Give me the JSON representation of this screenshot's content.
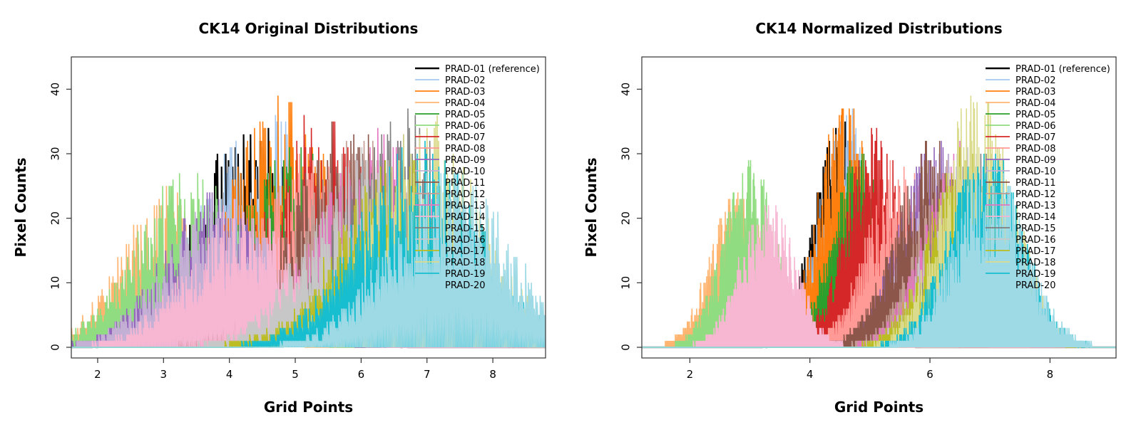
{
  "chart_data": [
    {
      "type": "line",
      "title": "CK14 Original Distributions",
      "xlabel": "Grid Points",
      "ylabel": "Pixel Counts",
      "xlim": [
        1.6,
        8.8
      ],
      "ylim": [
        0,
        45
      ],
      "xticks": [
        2,
        3,
        4,
        5,
        6,
        7,
        8
      ],
      "yticks": [
        0,
        10,
        20,
        30,
        40
      ],
      "legend_position": "top-right",
      "series": [
        {
          "name": "PRAD-01 (reference)",
          "color": "#000000",
          "center": 4.3,
          "sd": 0.85,
          "peak": 35
        },
        {
          "name": "PRAD-02",
          "color": "#A6C8EE",
          "center": 4.5,
          "sd": 0.9,
          "peak": 37
        },
        {
          "name": "PRAD-03",
          "color": "#FF7F0E",
          "center": 4.8,
          "sd": 0.85,
          "peak": 39
        },
        {
          "name": "PRAD-04",
          "color": "#FFB570",
          "center": 3.1,
          "sd": 0.75,
          "peak": 25
        },
        {
          "name": "PRAD-05",
          "color": "#2CA02C",
          "center": 5.0,
          "sd": 0.9,
          "peak": 32
        },
        {
          "name": "PRAD-06",
          "color": "#90DC80",
          "center": 3.4,
          "sd": 0.8,
          "peak": 29
        },
        {
          "name": "PRAD-07",
          "color": "#D62728",
          "center": 5.4,
          "sd": 0.9,
          "peak": 36
        },
        {
          "name": "PRAD-08",
          "color": "#FF9A96",
          "center": 5.2,
          "sd": 0.9,
          "peak": 30
        },
        {
          "name": "PRAD-09",
          "color": "#9467BD",
          "center": 3.8,
          "sd": 0.8,
          "peak": 24
        },
        {
          "name": "PRAD-10",
          "color": "#C5B0D5",
          "center": 3.9,
          "sd": 0.85,
          "peak": 24
        },
        {
          "name": "PRAD-11",
          "color": "#8C564B",
          "center": 5.8,
          "sd": 0.9,
          "peak": 35
        },
        {
          "name": "PRAD-12",
          "color": "#C49C94",
          "center": 6.0,
          "sd": 0.9,
          "peak": 33
        },
        {
          "name": "PRAD-13",
          "color": "#E377C2",
          "center": 6.3,
          "sd": 0.95,
          "peak": 33
        },
        {
          "name": "PRAD-14",
          "color": "#F7B6D2",
          "center": 4.2,
          "sd": 0.85,
          "peak": 22
        },
        {
          "name": "PRAD-15",
          "color": "#7F7F7F",
          "center": 6.6,
          "sd": 0.9,
          "peak": 36
        },
        {
          "name": "PRAD-16",
          "color": "#C7C7C7",
          "center": 6.1,
          "sd": 0.9,
          "peak": 31
        },
        {
          "name": "PRAD-17",
          "color": "#BCBD22",
          "center": 6.6,
          "sd": 0.95,
          "peak": 30
        },
        {
          "name": "PRAD-18",
          "color": "#DBDB8D",
          "center": 7.0,
          "sd": 0.9,
          "peak": 35
        },
        {
          "name": "PRAD-19",
          "color": "#17BECF",
          "center": 6.9,
          "sd": 0.95,
          "peak": 33
        },
        {
          "name": "PRAD-20",
          "color": "#9EDAE5",
          "center": 7.3,
          "sd": 0.9,
          "peak": 29
        }
      ]
    },
    {
      "type": "line",
      "title": "CK14 Normalized Distributions",
      "xlabel": "Grid Points",
      "ylabel": "Pixel Counts",
      "xlim": [
        1.2,
        9.1
      ],
      "ylim": [
        0,
        45
      ],
      "xticks": [
        2,
        4,
        6,
        8
      ],
      "yticks": [
        0,
        10,
        20,
        30,
        40
      ],
      "legend_position": "top-right",
      "series": [
        {
          "name": "PRAD-01 (reference)",
          "color": "#000000",
          "center": 4.5,
          "sd": 0.45,
          "peak": 35
        },
        {
          "name": "PRAD-02",
          "color": "#A6C8EE",
          "center": 4.6,
          "sd": 0.45,
          "peak": 37
        },
        {
          "name": "PRAD-03",
          "color": "#FF7F0E",
          "center": 4.6,
          "sd": 0.45,
          "peak": 39
        },
        {
          "name": "PRAD-04",
          "color": "#FFB570",
          "center": 2.8,
          "sd": 0.45,
          "peak": 25
        },
        {
          "name": "PRAD-05",
          "color": "#2CA02C",
          "center": 4.8,
          "sd": 0.45,
          "peak": 32
        },
        {
          "name": "PRAD-06",
          "color": "#90DC80",
          "center": 3.0,
          "sd": 0.45,
          "peak": 29
        },
        {
          "name": "PRAD-07",
          "color": "#D62728",
          "center": 5.1,
          "sd": 0.5,
          "peak": 36
        },
        {
          "name": "PRAD-08",
          "color": "#FF9A96",
          "center": 5.5,
          "sd": 0.55,
          "peak": 30
        },
        {
          "name": "PRAD-09",
          "color": "#9467BD",
          "center": 6.1,
          "sd": 0.6,
          "peak": 33
        },
        {
          "name": "PRAD-10",
          "color": "#C5B0D5",
          "center": 6.2,
          "sd": 0.6,
          "peak": 31
        },
        {
          "name": "PRAD-11",
          "color": "#8C564B",
          "center": 6.0,
          "sd": 0.6,
          "peak": 32
        },
        {
          "name": "PRAD-12",
          "color": "#C49C94",
          "center": 6.4,
          "sd": 0.6,
          "peak": 30
        },
        {
          "name": "PRAD-13",
          "color": "#E377C2",
          "center": 6.5,
          "sd": 0.6,
          "peak": 31
        },
        {
          "name": "PRAD-14",
          "color": "#F7B6D2",
          "center": 3.3,
          "sd": 0.45,
          "peak": 24
        },
        {
          "name": "PRAD-15",
          "color": "#7F7F7F",
          "center": 6.7,
          "sd": 0.6,
          "peak": 32
        },
        {
          "name": "PRAD-16",
          "color": "#C7C7C7",
          "center": 6.6,
          "sd": 0.6,
          "peak": 31
        },
        {
          "name": "PRAD-17",
          "color": "#BCBD22",
          "center": 6.6,
          "sd": 0.6,
          "peak": 32
        },
        {
          "name": "PRAD-18",
          "color": "#DBDB8D",
          "center": 6.8,
          "sd": 0.6,
          "peak": 40
        },
        {
          "name": "PRAD-19",
          "color": "#17BECF",
          "center": 6.9,
          "sd": 0.6,
          "peak": 33
        },
        {
          "name": "PRAD-20",
          "color": "#9EDAE5",
          "center": 7.0,
          "sd": 0.6,
          "peak": 29
        }
      ]
    }
  ]
}
